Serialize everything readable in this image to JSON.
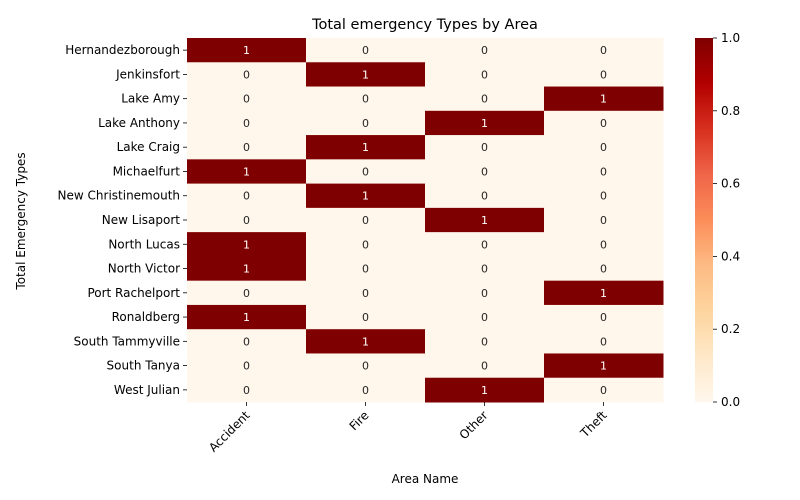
{
  "chart_data": {
    "type": "heatmap",
    "title": "Total emergency Types by Area",
    "xlabel": "Area Name",
    "ylabel": "Total Emergency Types",
    "columns": [
      "Accident",
      "Fire",
      "Other",
      "Theft"
    ],
    "rows": [
      "Hernandezborough",
      "Jenkinsfort",
      "Lake Amy",
      "Lake Anthony",
      "Lake Craig",
      "Michaelfurt",
      "New Christinemouth",
      "New Lisaport",
      "North Lucas",
      "North Victor",
      "Port Rachelport",
      "Ronaldberg",
      "South Tammyville",
      "South Tanya",
      "West Julian"
    ],
    "values": [
      [
        1,
        0,
        0,
        0
      ],
      [
        0,
        1,
        0,
        0
      ],
      [
        0,
        0,
        0,
        1
      ],
      [
        0,
        0,
        1,
        0
      ],
      [
        0,
        1,
        0,
        0
      ],
      [
        1,
        0,
        0,
        0
      ],
      [
        0,
        1,
        0,
        0
      ],
      [
        0,
        0,
        1,
        0
      ],
      [
        1,
        0,
        0,
        0
      ],
      [
        1,
        0,
        0,
        0
      ],
      [
        0,
        0,
        0,
        1
      ],
      [
        1,
        0,
        0,
        0
      ],
      [
        0,
        1,
        0,
        0
      ],
      [
        0,
        0,
        0,
        1
      ],
      [
        0,
        0,
        1,
        0
      ]
    ],
    "colorbar": {
      "range": [
        0,
        1
      ],
      "ticks": [
        "0.0",
        "0.2",
        "0.4",
        "0.6",
        "0.8",
        "1.0"
      ],
      "colormap": "OrRd"
    },
    "colors": {
      "low": "#fff7ec",
      "high": "#7f0000",
      "text_on_low": "#262626",
      "text_on_high": "#ffffff"
    },
    "grid": false,
    "legend": "colorbar-right"
  }
}
